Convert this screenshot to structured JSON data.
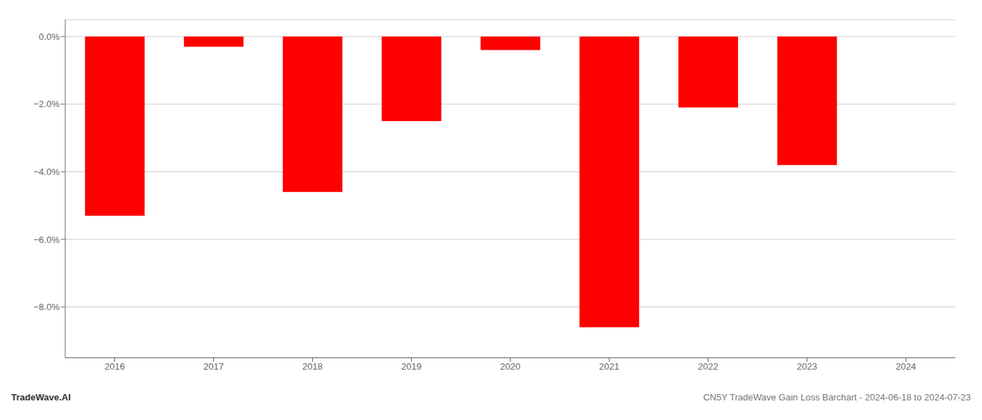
{
  "chart_data": {
    "type": "bar",
    "categories": [
      "2016",
      "2017",
      "2018",
      "2019",
      "2020",
      "2021",
      "2022",
      "2023",
      "2024"
    ],
    "values": [
      -5.3,
      -0.3,
      -4.6,
      -2.5,
      -0.4,
      -8.6,
      -2.1,
      -3.8,
      0.0
    ],
    "color": "#ff0000",
    "ylim": [
      -9.5,
      0.5
    ],
    "yticks": [
      {
        "value": 0.0,
        "label": "0.0%"
      },
      {
        "value": -2.0,
        "label": "−2.0%"
      },
      {
        "value": -4.0,
        "label": "−4.0%"
      },
      {
        "value": -6.0,
        "label": "−6.0%"
      },
      {
        "value": -8.0,
        "label": "−8.0%"
      }
    ],
    "grid": true,
    "annotations": [
      "TradeWave.AI",
      "CN5Y TradeWave Gain Loss Barchart - 2024-06-18 to 2024-07-23"
    ]
  }
}
